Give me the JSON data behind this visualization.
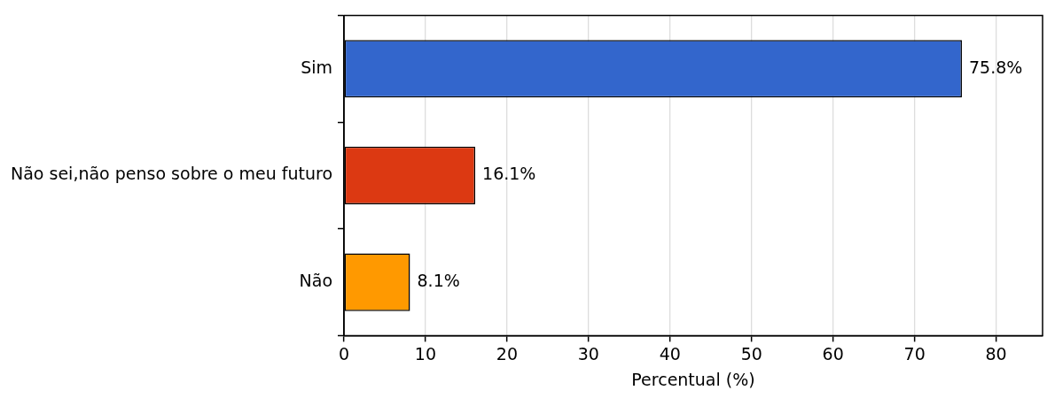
{
  "chart_data": {
    "type": "bar",
    "orientation": "horizontal",
    "categories": [
      "Sim",
      "Não sei,não penso sobre o meu futuro",
      "Não"
    ],
    "values": [
      75.8,
      16.1,
      8.1
    ],
    "colors": [
      "#3366cc",
      "#dc3912",
      "#ff9900"
    ],
    "value_labels": [
      "75.8%",
      "16.1%",
      "8.1%"
    ],
    "xlabel": "Percentual (%)",
    "xlim": [
      0,
      85.7
    ],
    "xticks": [
      0,
      10,
      20,
      30,
      40,
      50,
      60,
      70,
      80
    ],
    "grid": "x"
  }
}
